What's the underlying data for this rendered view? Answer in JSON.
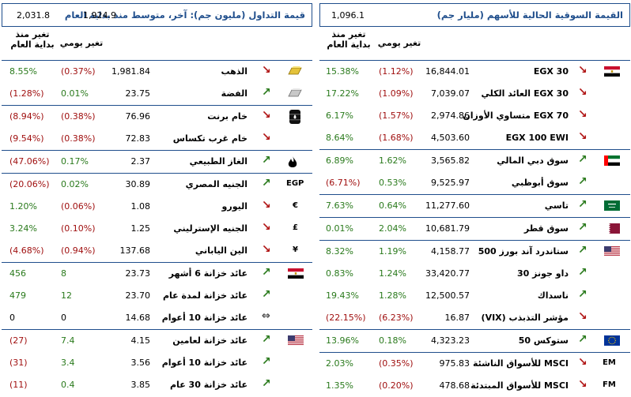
{
  "left": {
    "title": "قيمة التداول (مليون جم): آخر، متوسط منذ بداية العام",
    "last_value": "1,924.9",
    "avg_value": "2,031.8",
    "col_ytd": "تغير منذ بداية العام",
    "col_daily": "تغير يومي",
    "groups": [
      {
        "rows": [
          {
            "name": "الذهب",
            "price": "1,981.84",
            "daily": "(0.37%)",
            "ytd": "8.55%",
            "dir": "down",
            "icon": "gold-bar-icon",
            "daily_cls": "neg",
            "ytd_cls": "pos"
          },
          {
            "name": "الفضة",
            "price": "23.75",
            "daily": "0.01%",
            "ytd": "(1.28%)",
            "dir": "up",
            "icon": "silver-bar-icon",
            "daily_cls": "pos",
            "ytd_cls": "neg"
          }
        ]
      },
      {
        "rows": [
          {
            "name": "خام برنت",
            "price": "76.96",
            "daily": "(0.38%)",
            "ytd": "(8.94%)",
            "dir": "down",
            "icon": "oil-barrel-icon",
            "daily_cls": "neg",
            "ytd_cls": "neg"
          },
          {
            "name": "خام غرب تكساس",
            "price": "72.83",
            "daily": "(0.38%)",
            "ytd": "(9.54%)",
            "dir": "down",
            "icon": "",
            "daily_cls": "neg",
            "ytd_cls": "neg"
          }
        ]
      },
      {
        "rows": [
          {
            "name": "الغاز الطبيعي",
            "price": "2.37",
            "daily": "0.17%",
            "ytd": "(47.06%)",
            "dir": "up",
            "icon": "flame-icon",
            "daily_cls": "pos",
            "ytd_cls": "neg"
          }
        ]
      },
      {
        "rows": [
          {
            "name": "الجنيه المصري",
            "price": "30.89",
            "daily": "0.02%",
            "ytd": "(20.06%)",
            "dir": "up",
            "icon_text": "EGP",
            "daily_cls": "pos",
            "ytd_cls": "neg"
          },
          {
            "name": "اليورو",
            "price": "1.08",
            "daily": "(0.06%)",
            "ytd": "1.20%",
            "dir": "down",
            "icon_text": "€",
            "daily_cls": "neg",
            "ytd_cls": "pos"
          },
          {
            "name": "الجنيه الإسترليني",
            "price": "1.25",
            "daily": "(0.10%)",
            "ytd": "3.24%",
            "dir": "down",
            "icon_text": "£",
            "daily_cls": "neg",
            "ytd_cls": "pos"
          },
          {
            "name": "الين الياباني",
            "price": "137.68",
            "daily": "(0.94%)",
            "ytd": "(4.68%)",
            "dir": "down",
            "icon_text": "¥",
            "daily_cls": "neg",
            "ytd_cls": "neg"
          }
        ]
      },
      {
        "rows": [
          {
            "name": "عائد خزانة 6 أشهر",
            "price": "23.73",
            "daily": "8",
            "ytd": "456",
            "dir": "up",
            "flag": "egypt",
            "daily_cls": "pos",
            "ytd_cls": "pos"
          },
          {
            "name": "عائد خزانة لمدة عام",
            "price": "23.70",
            "daily": "12",
            "ytd": "479",
            "dir": "up",
            "daily_cls": "pos",
            "ytd_cls": "pos"
          },
          {
            "name": "عائد خزانة 10 أعوام",
            "price": "14.68",
            "daily": "0",
            "ytd": "0",
            "dir": "flat",
            "daily_cls": "neu",
            "ytd_cls": "neu"
          }
        ]
      },
      {
        "rows": [
          {
            "name": "عائد خزانة لعامين",
            "price": "4.15",
            "daily": "7.4",
            "ytd": "(27)",
            "dir": "up",
            "flag": "usa",
            "daily_cls": "pos",
            "ytd_cls": "neg"
          },
          {
            "name": "عائد خزانة 10 أعوام",
            "price": "3.56",
            "daily": "3.4",
            "ytd": "(31)",
            "dir": "up",
            "daily_cls": "pos",
            "ytd_cls": "neg"
          },
          {
            "name": "عائد خزانة 30 عام",
            "price": "3.85",
            "daily": "0.4",
            "ytd": "(11)",
            "dir": "up",
            "daily_cls": "pos",
            "ytd_cls": "neg"
          }
        ]
      }
    ]
  },
  "right": {
    "title": "القيمة السوقية الحالية للأسهم (مليار جم)",
    "value": "1,096.1",
    "col_ytd": "تغير منذ بداية العام",
    "col_daily": "تغير يومي",
    "groups": [
      {
        "rows": [
          {
            "name": "EGX 30",
            "price": "16,844.01",
            "daily": "(1.12%)",
            "ytd": "15.38%",
            "dir": "down",
            "flag": "egypt",
            "daily_cls": "neg",
            "ytd_cls": "pos"
          },
          {
            "name": "EGX 30 العائد الكلي",
            "price": "7,039.07",
            "daily": "(1.09%)",
            "ytd": "17.22%",
            "dir": "down",
            "daily_cls": "neg",
            "ytd_cls": "pos"
          },
          {
            "name": "EGX 70 متساوي الأوزان",
            "price": "2,974.86",
            "daily": "(1.57%)",
            "ytd": "6.17%",
            "dir": "down",
            "daily_cls": "neg",
            "ytd_cls": "pos"
          },
          {
            "name": "EGX 100 EWI",
            "price": "4,503.60",
            "daily": "(1.68%)",
            "ytd": "8.64%",
            "dir": "down",
            "daily_cls": "neg",
            "ytd_cls": "pos"
          }
        ]
      },
      {
        "rows": [
          {
            "name": "سوق دبي المالي",
            "price": "3,565.82",
            "daily": "1.62%",
            "ytd": "6.89%",
            "dir": "up",
            "flag": "uae",
            "daily_cls": "pos",
            "ytd_cls": "pos"
          },
          {
            "name": "سوق أبوظبي",
            "price": "9,525.97",
            "daily": "0.53%",
            "ytd": "(6.71%)",
            "dir": "up",
            "daily_cls": "pos",
            "ytd_cls": "neg"
          }
        ]
      },
      {
        "rows": [
          {
            "name": "تاسي",
            "price": "11,277.60",
            "daily": "0.64%",
            "ytd": "7.63%",
            "dir": "up",
            "flag": "saudi",
            "daily_cls": "pos",
            "ytd_cls": "pos"
          }
        ]
      },
      {
        "rows": [
          {
            "name": "سوق قطر",
            "price": "10,681.79",
            "daily": "2.04%",
            "ytd": "0.01%",
            "dir": "up",
            "flag": "qatar",
            "daily_cls": "pos",
            "ytd_cls": "pos"
          }
        ]
      },
      {
        "rows": [
          {
            "name": "ستاندرد آند بورز 500",
            "price": "4,158.77",
            "daily": "1.19%",
            "ytd": "8.32%",
            "dir": "up",
            "flag": "usa",
            "daily_cls": "pos",
            "ytd_cls": "pos"
          },
          {
            "name": "داو جونز 30",
            "price": "33,420.77",
            "daily": "1.24%",
            "ytd": "0.83%",
            "dir": "up",
            "daily_cls": "pos",
            "ytd_cls": "pos"
          },
          {
            "name": "ناسداك",
            "price": "12,500.57",
            "daily": "1.28%",
            "ytd": "19.43%",
            "dir": "up",
            "daily_cls": "pos",
            "ytd_cls": "pos"
          },
          {
            "name": "مؤشر التذبذب (VIX)",
            "price": "16.87",
            "daily": "(6.23%)",
            "ytd": "(22.15%)",
            "dir": "down",
            "daily_cls": "neg",
            "ytd_cls": "neg"
          }
        ]
      },
      {
        "rows": [
          {
            "name": "ستوكس 50",
            "price": "4,323.23",
            "daily": "0.18%",
            "ytd": "13.96%",
            "dir": "up",
            "flag": "eu",
            "daily_cls": "pos",
            "ytd_cls": "pos"
          }
        ]
      },
      {
        "rows": [
          {
            "name": "MSCI للأسواق الناشئة",
            "price": "975.83",
            "daily": "(0.35%)",
            "ytd": "2.03%",
            "dir": "down",
            "icon_text": "EM",
            "daily_cls": "neg",
            "ytd_cls": "pos"
          },
          {
            "name": "MSCI للأسواق المبتدئة",
            "price": "478.68",
            "daily": "(0.20%)",
            "ytd": "1.35%",
            "dir": "down",
            "icon_text": "FM",
            "daily_cls": "neg",
            "ytd_cls": "pos"
          }
        ]
      }
    ]
  }
}
